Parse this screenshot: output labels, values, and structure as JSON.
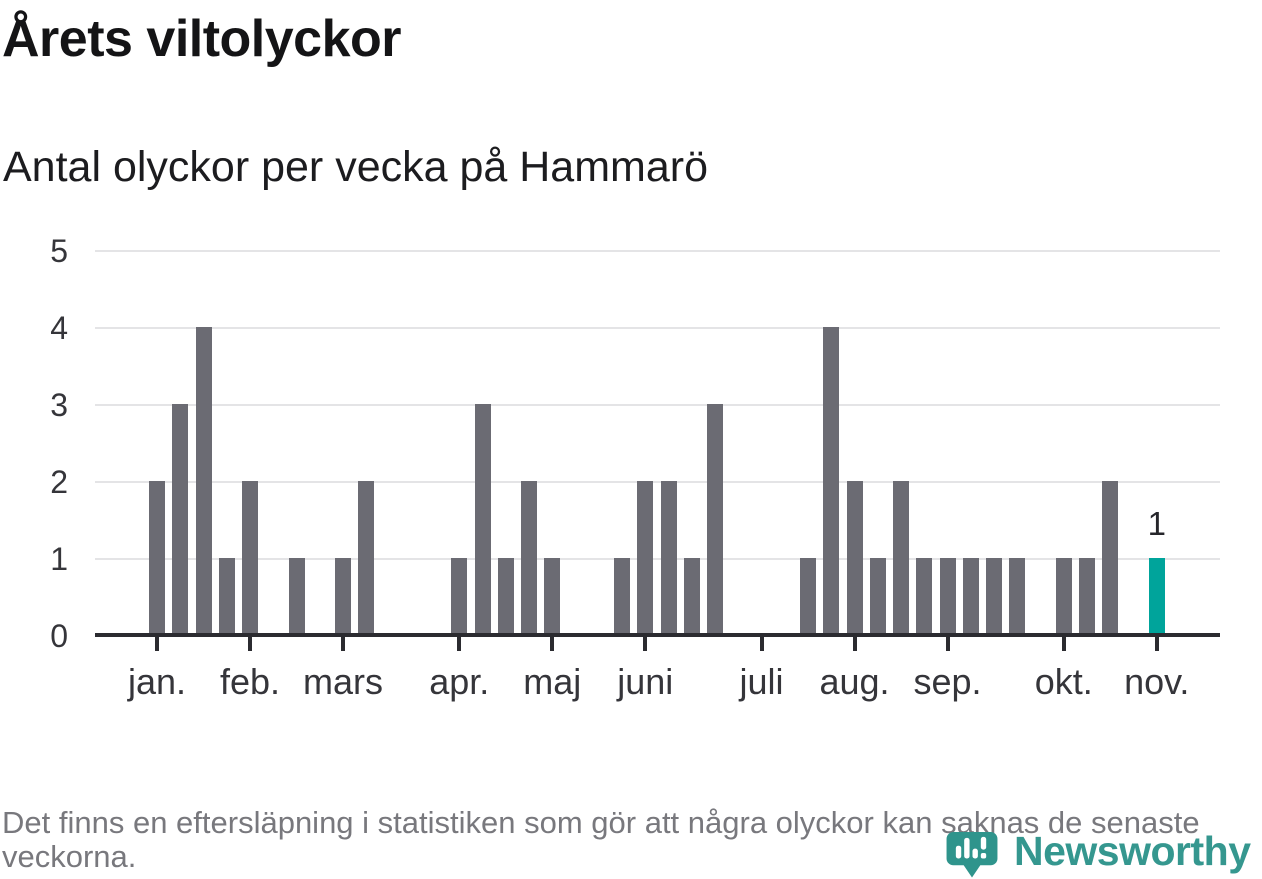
{
  "header": {
    "title": "Årets viltolyckor",
    "subtitle": "Antal olyckor per vecka på Hammarö"
  },
  "chart_data": {
    "type": "bar",
    "title": "Årets viltolyckor",
    "subtitle": "Antal olyckor per vecka på Hammarö",
    "x_unit": "vecka",
    "values": [
      2,
      3,
      4,
      1,
      2,
      0,
      1,
      0,
      1,
      2,
      0,
      0,
      0,
      1,
      3,
      1,
      2,
      1,
      0,
      0,
      1,
      2,
      2,
      1,
      3,
      0,
      0,
      0,
      1,
      4,
      2,
      1,
      2,
      1,
      1,
      1,
      1,
      1,
      0,
      1,
      1,
      2,
      0,
      1
    ],
    "month_ticks": [
      {
        "label": "jan.",
        "week": 0
      },
      {
        "label": "feb.",
        "week": 4
      },
      {
        "label": "mars",
        "week": 8
      },
      {
        "label": "apr.",
        "week": 13
      },
      {
        "label": "maj",
        "week": 17
      },
      {
        "label": "juni",
        "week": 21
      },
      {
        "label": "juli",
        "week": 26
      },
      {
        "label": "aug.",
        "week": 30
      },
      {
        "label": "sep.",
        "week": 34
      },
      {
        "label": "okt.",
        "week": 39
      },
      {
        "label": "nov.",
        "week": 43
      }
    ],
    "y_ticks": [
      0,
      1,
      2,
      3,
      4,
      5
    ],
    "ylim": [
      0,
      5
    ],
    "grid": true,
    "legend": "none",
    "highlight_index": 43,
    "highlight_value_label": "1",
    "colors": {
      "bar": "#6b6b73",
      "highlight": "#00a49b",
      "axis": "#2b2b30",
      "gridline": "#e4e4e6"
    }
  },
  "footer": {
    "note": "Det finns en eftersläpning i statistiken som gör att några olyckor kan saknas de senaste veckorna."
  },
  "logo": {
    "name": "Newsworthy",
    "color": "#35978f"
  }
}
